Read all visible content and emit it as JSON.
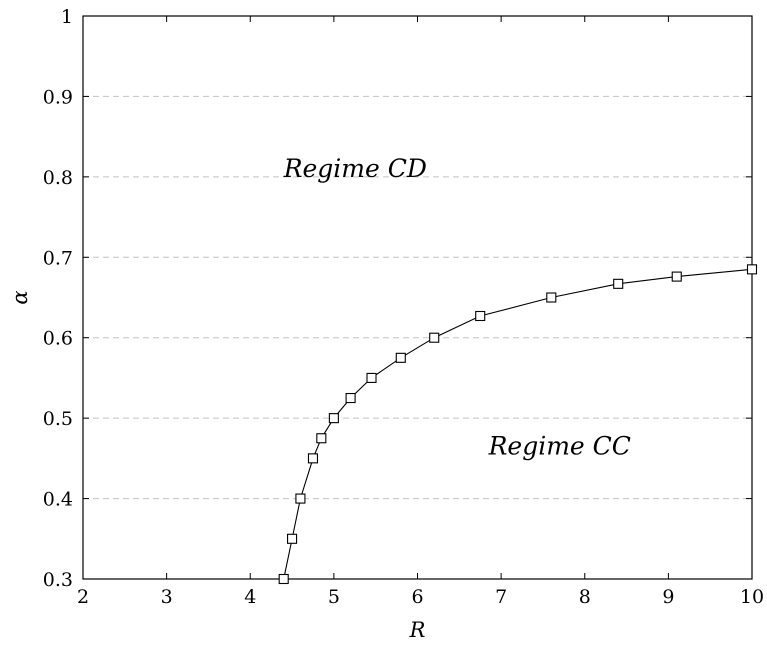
{
  "chart_data": {
    "type": "line",
    "xlabel": "R",
    "ylabel": "α",
    "xlim": [
      2,
      10
    ],
    "ylim": [
      0.3,
      1
    ],
    "xticks": [
      2,
      3,
      4,
      5,
      6,
      7,
      8,
      9,
      10
    ],
    "yticks": [
      0.3,
      0.4,
      0.5,
      0.6,
      0.7,
      0.8,
      0.9,
      1
    ],
    "ytick_labels": [
      "0.3",
      "0.4",
      "0.5",
      "0.6",
      "0.7",
      "0.8",
      "0.9",
      "1"
    ],
    "grid": "horizontal dashed",
    "series": [
      {
        "marker": "square",
        "color": "#000000",
        "x": [
          4.4,
          4.5,
          4.6,
          4.75,
          4.85,
          5.0,
          5.2,
          5.45,
          5.8,
          6.2,
          6.75,
          7.6,
          8.4,
          9.1,
          10.0
        ],
        "y": [
          0.3,
          0.35,
          0.4,
          0.45,
          0.475,
          0.5,
          0.525,
          0.55,
          0.575,
          0.6,
          0.627,
          0.65,
          0.667,
          0.676,
          0.685
        ]
      }
    ],
    "annotations": [
      {
        "text": "Regime CD",
        "x": 4.4,
        "y": 0.8
      },
      {
        "text": "Regime CC",
        "x": 6.85,
        "y": 0.455
      }
    ]
  }
}
